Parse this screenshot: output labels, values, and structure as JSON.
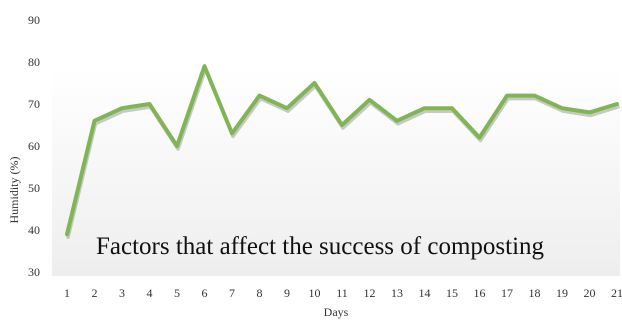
{
  "chart_data": {
    "type": "line",
    "title": "",
    "xlabel": "Days",
    "ylabel": "Humidity (%)",
    "annotation": "Factors that affect the success of composting",
    "ylim": [
      30,
      90
    ],
    "yticks": [
      30,
      40,
      50,
      60,
      70,
      80,
      90
    ],
    "x": [
      1,
      2,
      3,
      4,
      5,
      6,
      7,
      8,
      9,
      10,
      11,
      12,
      13,
      14,
      15,
      16,
      17,
      18,
      19,
      20,
      21
    ],
    "series": [
      {
        "values": [
          39,
          66,
          69,
          70,
          60,
          79,
          63,
          72,
          69,
          75,
          65,
          71,
          66,
          69,
          69,
          62,
          72,
          72,
          69,
          68,
          70
        ]
      }
    ],
    "grid": false,
    "colors": {
      "line": "#7fb553",
      "line_shadow": "#8a8a8a",
      "plot_bg_top": "#ffffff",
      "plot_bg_bottom": "#eeeeee"
    }
  }
}
